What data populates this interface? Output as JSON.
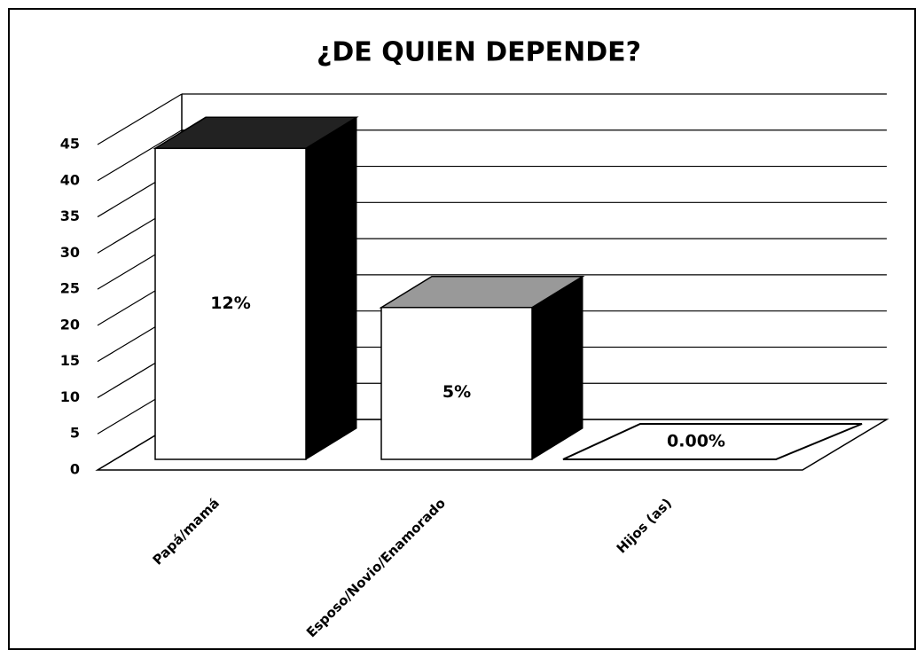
{
  "chart_data": {
    "type": "bar3d",
    "title": "¿DE QUIEN DEPENDE?",
    "categories": [
      "Papá/mamá",
      "Esposo/Novio/Enamorado",
      "Hijos (as)"
    ],
    "values": [
      43,
      21,
      0
    ],
    "annotations": [
      "12%",
      "5%",
      "0.00%"
    ],
    "color": "#ffffff",
    "ylim": [
      0,
      45
    ],
    "yticks": [
      0,
      5,
      10,
      15,
      20,
      25,
      30,
      35,
      40,
      45
    ],
    "grid": true
  }
}
